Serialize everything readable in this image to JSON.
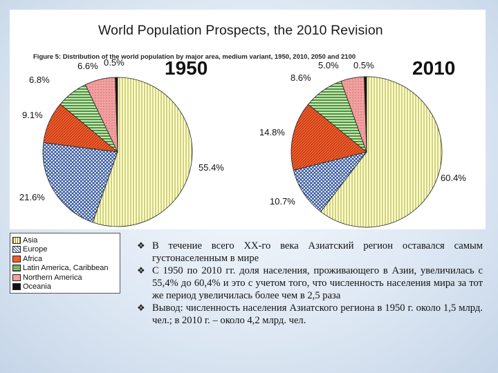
{
  "figure": {
    "title": "World Population Prospects, the 2010 Revision",
    "caption": "Figure 5: Distribution of the world population by major area, medium variant, 1950, 2010, 2050 and 2100"
  },
  "colors": {
    "asia": "#ffffb8",
    "europe": "#2a4f9a",
    "africa": "#f25c2c",
    "latin": "#2f7d2a",
    "northern": "#f2a0a0",
    "oceania": "#111111"
  },
  "chart_data": [
    {
      "type": "pie",
      "title": "1950",
      "categories": [
        "Asia",
        "Europe",
        "Africa",
        "Latin America, Caribbean",
        "Northern America",
        "Oceania"
      ],
      "values": [
        55.4,
        21.6,
        9.1,
        6.8,
        6.6,
        0.5
      ],
      "labels": [
        "55.4%",
        "21.6%",
        "9.1%",
        "6.8%",
        "6.6%",
        "0.5%"
      ]
    },
    {
      "type": "pie",
      "title": "2010",
      "categories": [
        "Asia",
        "Europe",
        "Africa",
        "Latin America, Caribbean",
        "Northern America",
        "Oceania"
      ],
      "values": [
        60.4,
        10.7,
        14.8,
        8.6,
        5.0,
        0.5
      ],
      "labels": [
        "60.4%",
        "10.7%",
        "14.8%",
        "8.6%",
        "5.0%",
        "0.5%"
      ]
    }
  ],
  "legend": {
    "items": [
      "Asia",
      "Europe",
      "Africa",
      "Latin America, Caribbean",
      "Northern America",
      "Oceania"
    ]
  },
  "notes": {
    "bullet": "❖",
    "items": [
      "В течение всего XX-го века Азиатский регион оставался самым густонаселенным в мире",
      "С 1950 по 2010 гг. доля населения, проживающего в Азии, увеличилась с 55,4% до 60,4% и это с учетом того, что численность населения мира за тот же период увеличилась более чем в 2,5 раза",
      "Вывод: численность населения Азиатского региона в 1950 г. около 1,5 млрд. чел.; в 2010 г. – около 4,2 млрд. чел."
    ]
  }
}
